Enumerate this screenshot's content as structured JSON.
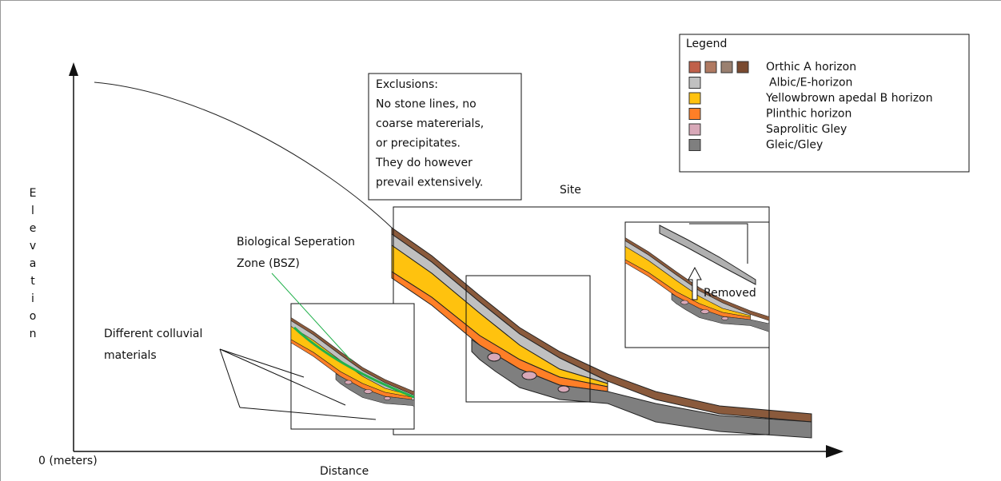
{
  "legend": {
    "title": "Legend",
    "items": [
      {
        "label": "Orthic A horizon",
        "colors": [
          "#c0604a",
          "#b07a62",
          "#9a8070",
          "#7a4a30"
        ]
      },
      {
        "label": "Albic/E-horizon",
        "colors": [
          "#c0c0c0"
        ]
      },
      {
        "label": "Yellowbrown apedal B horizon",
        "colors": [
          "#ffc20e"
        ]
      },
      {
        "label": "Plinthic horizon",
        "colors": [
          "#ff7f27"
        ]
      },
      {
        "label": "Saprolitic Gley",
        "colors": [
          "#d8a8b8"
        ]
      },
      {
        "label": "Gleic/Gley",
        "colors": [
          "#7f7f7f"
        ]
      }
    ]
  },
  "exclusions": [
    "Exclusions:",
    "No stone lines, no",
    "coarse matererials,",
    "or precipitates.",
    "They do however",
    "prevail extensively."
  ],
  "labels": {
    "site": "Site",
    "bsz": [
      "Biological Seperation",
      "Zone (BSZ)"
    ],
    "colluvial": [
      "Different colluvial",
      "materials"
    ],
    "removed": "Removed"
  },
  "axes": {
    "y": "Elevation",
    "origin": "0 (meters)",
    "x": "Distance"
  }
}
